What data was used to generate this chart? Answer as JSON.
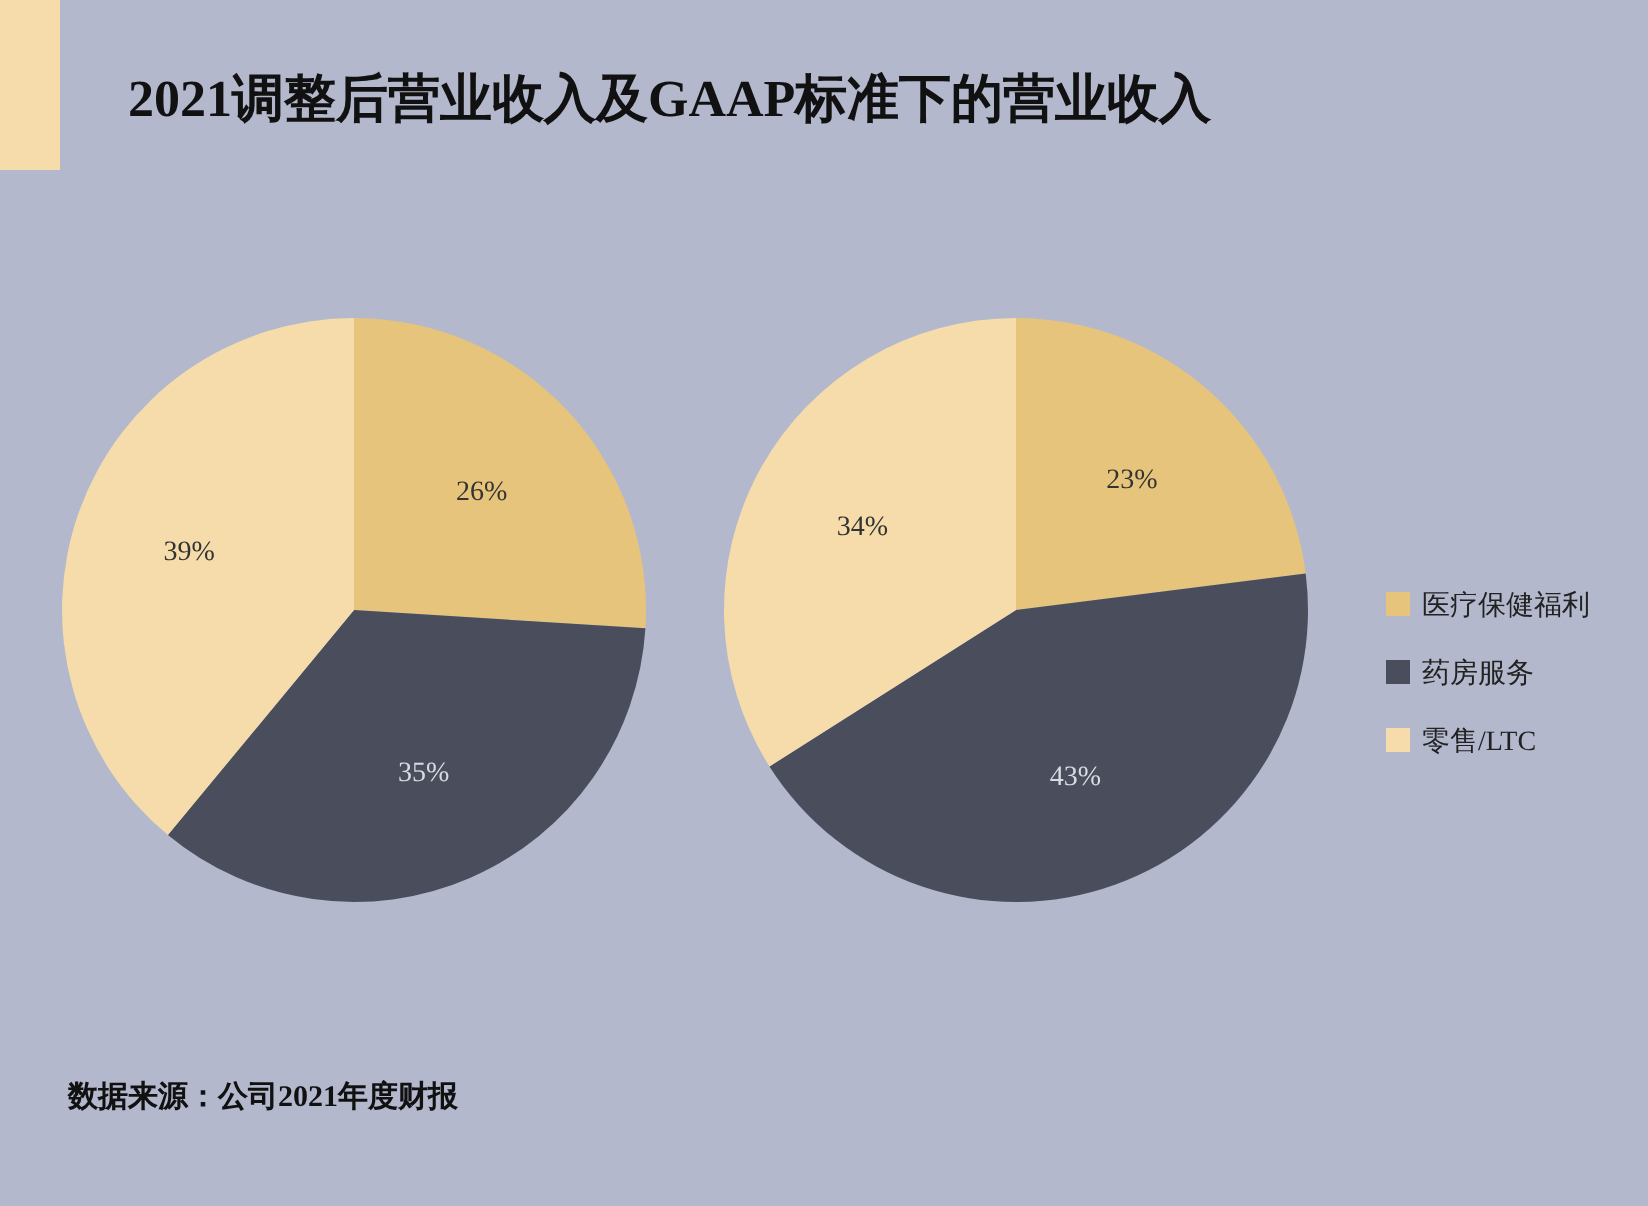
{
  "chart_data": [
    {
      "type": "pie",
      "title": "2021调整后营业收入及GAAP标准下的营业收入",
      "categories": [
        null,
        null,
        null
      ],
      "values": [
        26,
        35,
        39
      ],
      "colors": [
        "#e6c47b",
        "#4a4e5c",
        "#f5dcaa"
      ],
      "value_labels": [
        "26%",
        "35%",
        "39%"
      ],
      "annotations": [
        "数据来源：公司2021年度财报"
      ]
    },
    {
      "type": "pie",
      "categories": [
        "医疗保健福利",
        "药房服务",
        "零售/LTC"
      ],
      "values": [
        23,
        43,
        34
      ],
      "colors": [
        "#e6c47b",
        "#4a4e5c",
        "#f5dcaa"
      ],
      "value_labels": [
        "23%",
        "43%",
        "34%"
      ],
      "legend": "right"
    }
  ]
}
